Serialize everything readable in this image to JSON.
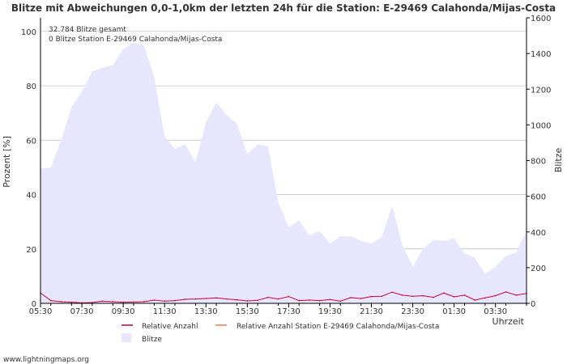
{
  "chart_data": {
    "type": "area",
    "title": "Blitze mit Abweichungen 0,0-1,0km der letzten 24h für die Station: E-29469 Calahonda/Mijas-Costa",
    "ylabel_left": "Prozent   [%]",
    "ylabel_right": "Blitze",
    "xlabel": "Uhrzeit",
    "grid": true,
    "y_left_range": [
      0,
      105
    ],
    "y_right_range": [
      0,
      1600
    ],
    "y_left_ticks": [
      "0",
      "20",
      "40",
      "60",
      "80",
      "100"
    ],
    "y_right_ticks": [
      "0",
      "200",
      "400",
      "600",
      "800",
      "1000",
      "1200",
      "1400",
      "1600"
    ],
    "x_tick_labels": [
      "05:30",
      "07:30",
      "09:30",
      "11:30",
      "13:30",
      "15:30",
      "17:30",
      "19:30",
      "21:30",
      "23:30",
      "01:30",
      "03:30"
    ],
    "annotations": [
      "32.784 Blitze gesamt",
      "0 Blitze Station E-29469 Calahonda/Mijas-Costa"
    ],
    "legend": {
      "placement": "bottom",
      "entries": [
        {
          "label": "Relative Anzahl",
          "color": "#cc0033",
          "kind": "line"
        },
        {
          "label": "Relative Anzahl Station E-29469 Calahonda/Mijas-Costa",
          "color": "#ee7755",
          "kind": "line"
        },
        {
          "label": "Blitze",
          "color": "#e6e6ff",
          "kind": "area"
        }
      ]
    },
    "x_hours": [
      0,
      0.5,
      1,
      1.5,
      2,
      2.5,
      3,
      3.5,
      4,
      4.5,
      5,
      5.5,
      6,
      6.5,
      7,
      7.5,
      8,
      8.5,
      9,
      9.5,
      10,
      10.5,
      11,
      11.5,
      12,
      12.5,
      13,
      13.5,
      14,
      14.5,
      15,
      15.5,
      16,
      16.5,
      17,
      17.5,
      18,
      18.5,
      19,
      19.5,
      20,
      20.5,
      21,
      21.5,
      22,
      22.5,
      23,
      23.5
    ],
    "series": [
      {
        "name": "Blitze",
        "axis": "right",
        "values": [
          755,
          760,
          915,
          1100,
          1185,
          1300,
          1320,
          1335,
          1425,
          1460,
          1445,
          1265,
          935,
          865,
          890,
          790,
          1015,
          1125,
          1055,
          1005,
          835,
          890,
          880,
          565,
          425,
          465,
          380,
          405,
          335,
          375,
          375,
          350,
          335,
          370,
          545,
          325,
          205,
          305,
          355,
          350,
          365,
          280,
          255,
          165,
          205,
          265,
          285,
          405
        ]
      },
      {
        "name": "Relative Anzahl",
        "axis": "left",
        "values": [
          3.8,
          1.0,
          0.6,
          0.4,
          0.2,
          0.3,
          0.8,
          0.6,
          0.4,
          0.5,
          0.6,
          1.2,
          0.8,
          1.0,
          1.5,
          1.6,
          1.8,
          2.0,
          1.6,
          1.3,
          0.9,
          1.1,
          2.2,
          1.6,
          2.5,
          1.0,
          1.2,
          1.0,
          1.4,
          0.8,
          2.1,
          1.8,
          2.5,
          2.6,
          4.1,
          3.0,
          2.6,
          2.8,
          2.2,
          3.8,
          2.4,
          3.0,
          1.2,
          2.0,
          2.8,
          4.2,
          3.0,
          3.6
        ]
      },
      {
        "name": "Relative Anzahl Station E-29469 Calahonda/Mijas-Costa",
        "axis": "left",
        "values": [
          0,
          0,
          0,
          0,
          0,
          0,
          0,
          0,
          0,
          0,
          0,
          0,
          0,
          0,
          0,
          0,
          0,
          0,
          0,
          0,
          0,
          0,
          0,
          0,
          0,
          0,
          0,
          0,
          0,
          0,
          0,
          0,
          0,
          0,
          0,
          0,
          0,
          0,
          0,
          0,
          0,
          0,
          0,
          0,
          0,
          0,
          0,
          0
        ]
      }
    ]
  },
  "footer": {
    "source": "www.lightningmaps.org"
  },
  "colors": {
    "area": "#e6e6ff",
    "relative": "#cc0033",
    "station": "#ee7755",
    "grid": "#bbbbbb",
    "axis": "#000000"
  }
}
